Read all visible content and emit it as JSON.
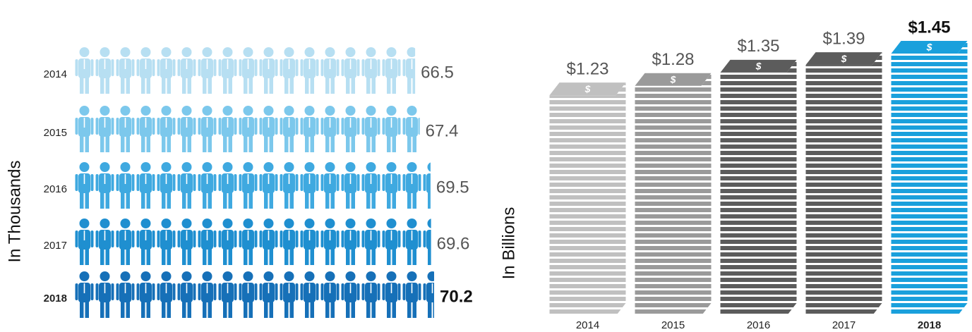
{
  "chart_data": [
    {
      "type": "pictograph",
      "orientation": "horizontal",
      "y_label": "In Thousands",
      "categories": [
        "2014",
        "2015",
        "2016",
        "2017",
        "2018"
      ],
      "values": [
        66.5,
        67.4,
        69.5,
        69.6,
        70.2
      ],
      "colors": [
        "#b7dff2",
        "#7cc8ec",
        "#3fa9e0",
        "#1f8fd0",
        "#1670b8"
      ]
    },
    {
      "type": "stack",
      "orientation": "vertical",
      "y_label": "In Billions",
      "categories": [
        "2014",
        "2015",
        "2016",
        "2017",
        "2018"
      ],
      "values": [
        1.23,
        1.28,
        1.35,
        1.39,
        1.45
      ],
      "value_labels": [
        "$1.23",
        "$1.28",
        "$1.35",
        "$1.39",
        "$1.45"
      ],
      "colors": [
        "#c0c0c0",
        "#9a9a9a",
        "#5c5c5c",
        "#5c5c5c",
        "#1aa0dc"
      ]
    }
  ]
}
